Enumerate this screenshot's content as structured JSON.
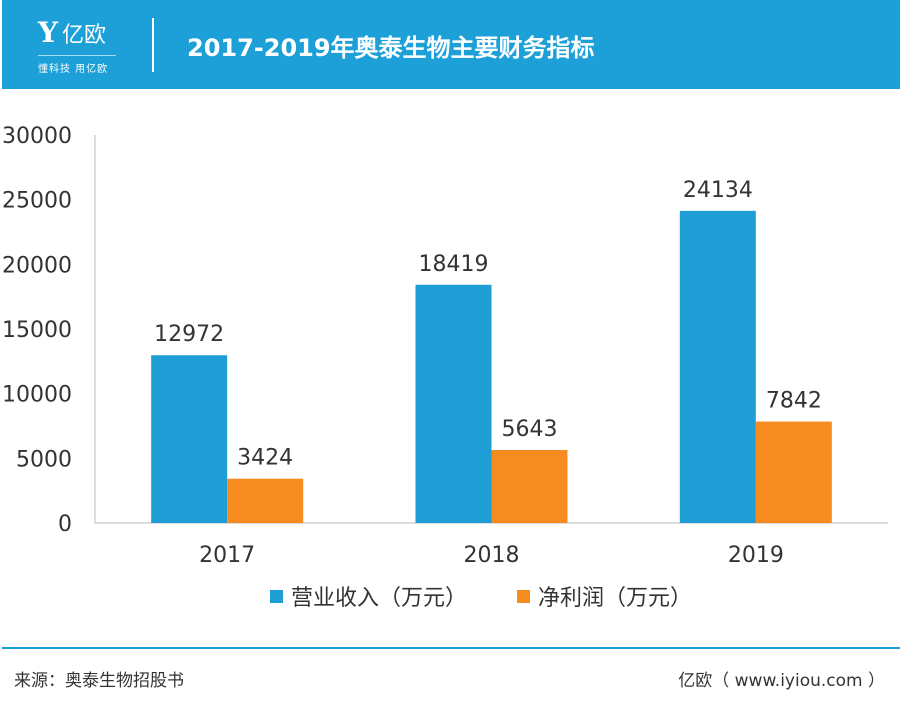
{
  "header": {
    "logo_text": "亿欧",
    "logo_tagline": "懂科技 用亿欧",
    "title": "2017-2019年奥泰生物主要财务指标"
  },
  "chart_data": {
    "type": "bar",
    "title": "2017-2019年奥泰生物主要财务指标",
    "categories": [
      "2017",
      "2018",
      "2019"
    ],
    "series": [
      {
        "name": "营业收入（万元）",
        "values": [
          12972,
          18419,
          24134
        ],
        "color": "#1f9ed6"
      },
      {
        "name": "净利润（万元）",
        "values": [
          3424,
          5643,
          7842
        ],
        "color": "#f68b1f"
      }
    ],
    "ylim": [
      0,
      30000
    ],
    "yticks": [
      "0",
      "5000",
      "10000",
      "15000",
      "20000",
      "25000",
      "30000"
    ],
    "grid": false,
    "legend": "bottom"
  },
  "footer": {
    "source": "来源：奥泰生物招股书",
    "site": "亿欧（ www.iyiou.com ）"
  }
}
